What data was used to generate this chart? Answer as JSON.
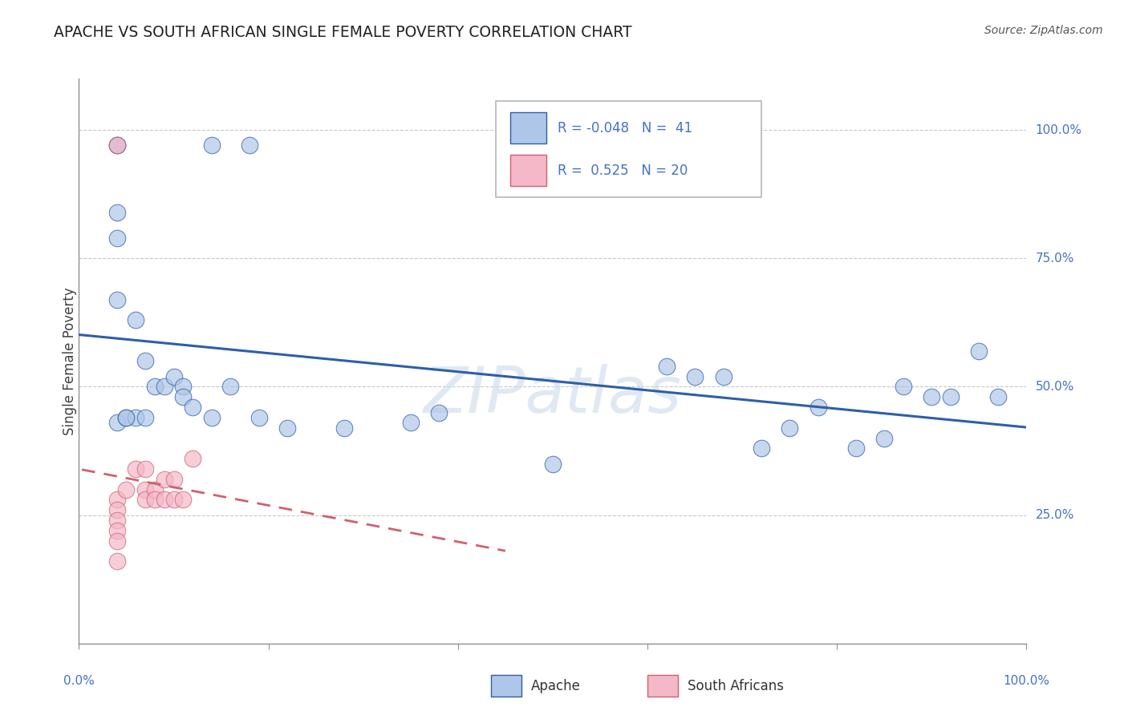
{
  "title": "APACHE VS SOUTH AFRICAN SINGLE FEMALE POVERTY CORRELATION CHART",
  "source": "Source: ZipAtlas.com",
  "ylabel": "Single Female Poverty",
  "ytick_labels": [
    "100.0%",
    "75.0%",
    "50.0%",
    "25.0%"
  ],
  "ytick_positions": [
    1.0,
    0.75,
    0.5,
    0.25
  ],
  "r_apache": -0.048,
  "r_sa": 0.525,
  "apache_color": "#aec6e8",
  "sa_color": "#f4b8c8",
  "apache_line_color": "#2f5ea8",
  "sa_line_color": "#d06070",
  "watermark": "ZIPatlas",
  "apache_x": [
    0.04,
    0.04,
    0.14,
    0.18,
    0.04,
    0.04,
    0.04,
    0.06,
    0.07,
    0.08,
    0.09,
    0.1,
    0.11,
    0.11,
    0.12,
    0.14,
    0.16,
    0.19,
    0.22,
    0.28,
    0.35,
    0.38,
    0.5,
    0.62,
    0.65,
    0.68,
    0.72,
    0.75,
    0.78,
    0.82,
    0.85,
    0.87,
    0.9,
    0.92,
    0.95,
    0.97,
    0.04,
    0.05,
    0.06,
    0.07,
    0.05
  ],
  "apache_y": [
    0.97,
    0.97,
    0.97,
    0.97,
    0.84,
    0.79,
    0.67,
    0.63,
    0.55,
    0.5,
    0.5,
    0.52,
    0.5,
    0.48,
    0.46,
    0.44,
    0.5,
    0.44,
    0.42,
    0.42,
    0.43,
    0.45,
    0.35,
    0.54,
    0.52,
    0.52,
    0.38,
    0.42,
    0.46,
    0.38,
    0.4,
    0.5,
    0.48,
    0.48,
    0.57,
    0.48,
    0.43,
    0.44,
    0.44,
    0.44,
    0.44
  ],
  "sa_x": [
    0.04,
    0.04,
    0.04,
    0.04,
    0.05,
    0.06,
    0.07,
    0.07,
    0.07,
    0.08,
    0.08,
    0.09,
    0.09,
    0.1,
    0.1,
    0.11,
    0.12,
    0.04,
    0.04,
    0.04
  ],
  "sa_y": [
    0.97,
    0.28,
    0.26,
    0.24,
    0.3,
    0.34,
    0.34,
    0.3,
    0.28,
    0.3,
    0.28,
    0.32,
    0.28,
    0.32,
    0.28,
    0.28,
    0.36,
    0.22,
    0.2,
    0.16
  ]
}
